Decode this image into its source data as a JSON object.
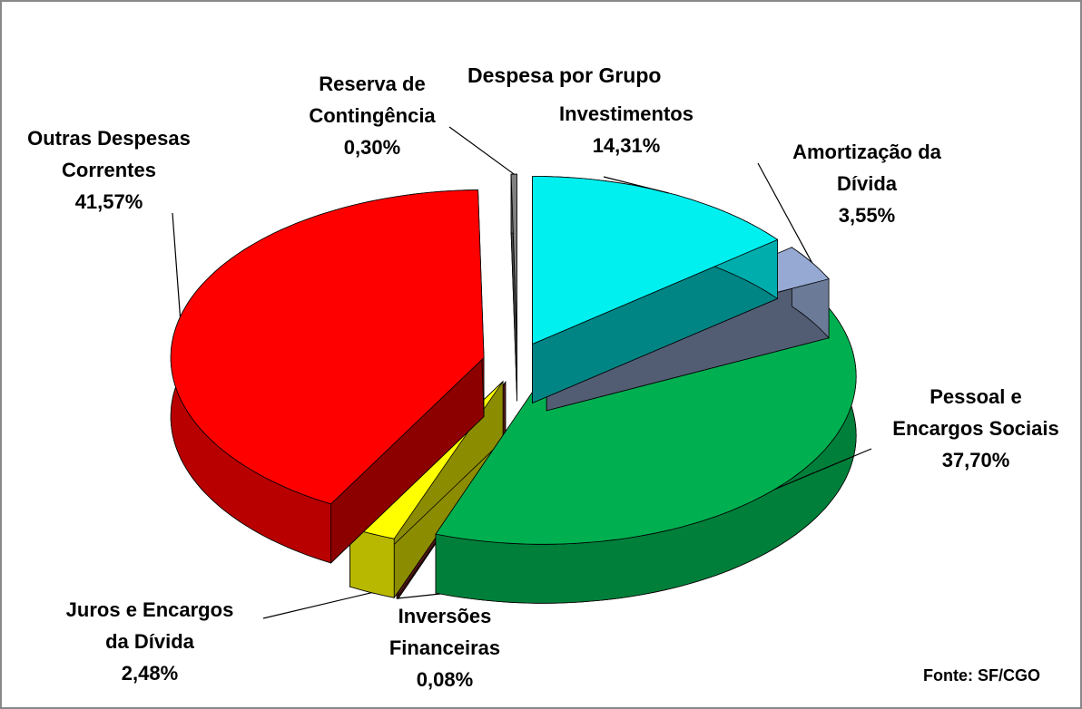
{
  "chart_data": {
    "type": "pie3d",
    "title": "Despesa por Grupo",
    "source": "Fonte: SF/CGO",
    "categories": [
      "Investimentos",
      "Amortização da\nDívida",
      "Pessoal e\nEncargos Sociais",
      "Inversões\nFinanceiras",
      "Juros e Encargos\nda Dívida",
      "Outras Despesas\nCorrentes",
      "Reserva de\nContingência"
    ],
    "values": [
      14.31,
      3.55,
      37.7,
      0.08,
      2.48,
      41.57,
      0.3
    ],
    "value_labels": [
      "14,31%",
      "3,55%",
      "37,70%",
      "0,08%",
      "2,48%",
      "41,57%",
      "0,30%"
    ],
    "colors": [
      "#00f0f0",
      "#95a9d2",
      "#00b050",
      "#9b2a2a",
      "#ffff00",
      "#ff0000",
      "#808080"
    ]
  }
}
